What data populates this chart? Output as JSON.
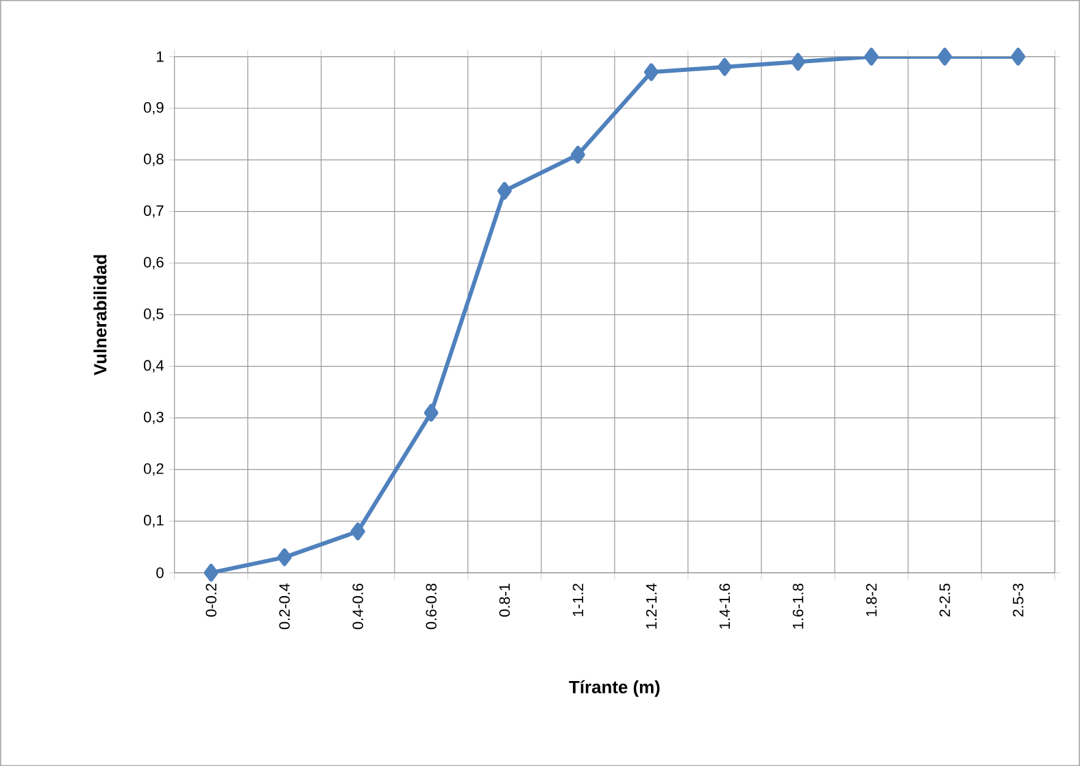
{
  "chart_data": {
    "type": "line",
    "xlabel": "Tírante (m)",
    "ylabel": "Vulnerabilidad",
    "categories": [
      "0-0.2",
      "0.2-0.4",
      "0.4-0.6",
      "0.6-0.8",
      "0.8-1",
      "1-1.2",
      "1.2-1.4",
      "1.4-1.6",
      "1.6-1.8",
      "1.8-2",
      "2-2.5",
      "2.5-3"
    ],
    "series": [
      {
        "color": "#4f81bd",
        "values": [
          0,
          0.03,
          0.08,
          0.31,
          0.74,
          0.81,
          0.97,
          0.98,
          0.99,
          1,
          1,
          1
        ]
      }
    ],
    "ylim": [
      0,
      1
    ],
    "yticks": [
      {
        "value": 0,
        "label": "0"
      },
      {
        "value": 0.1,
        "label": "0,1"
      },
      {
        "value": 0.2,
        "label": "0,2"
      },
      {
        "value": 0.3,
        "label": "0,3"
      },
      {
        "value": 0.4,
        "label": "0,4"
      },
      {
        "value": 0.5,
        "label": "0,5"
      },
      {
        "value": 0.6,
        "label": "0,6"
      },
      {
        "value": 0.7,
        "label": "0,7"
      },
      {
        "value": 0.8,
        "label": "0,8"
      },
      {
        "value": 0.9,
        "label": "0,9"
      },
      {
        "value": 1,
        "label": "1"
      }
    ],
    "grid": true,
    "marker": "diamond",
    "line_style": "solid"
  }
}
